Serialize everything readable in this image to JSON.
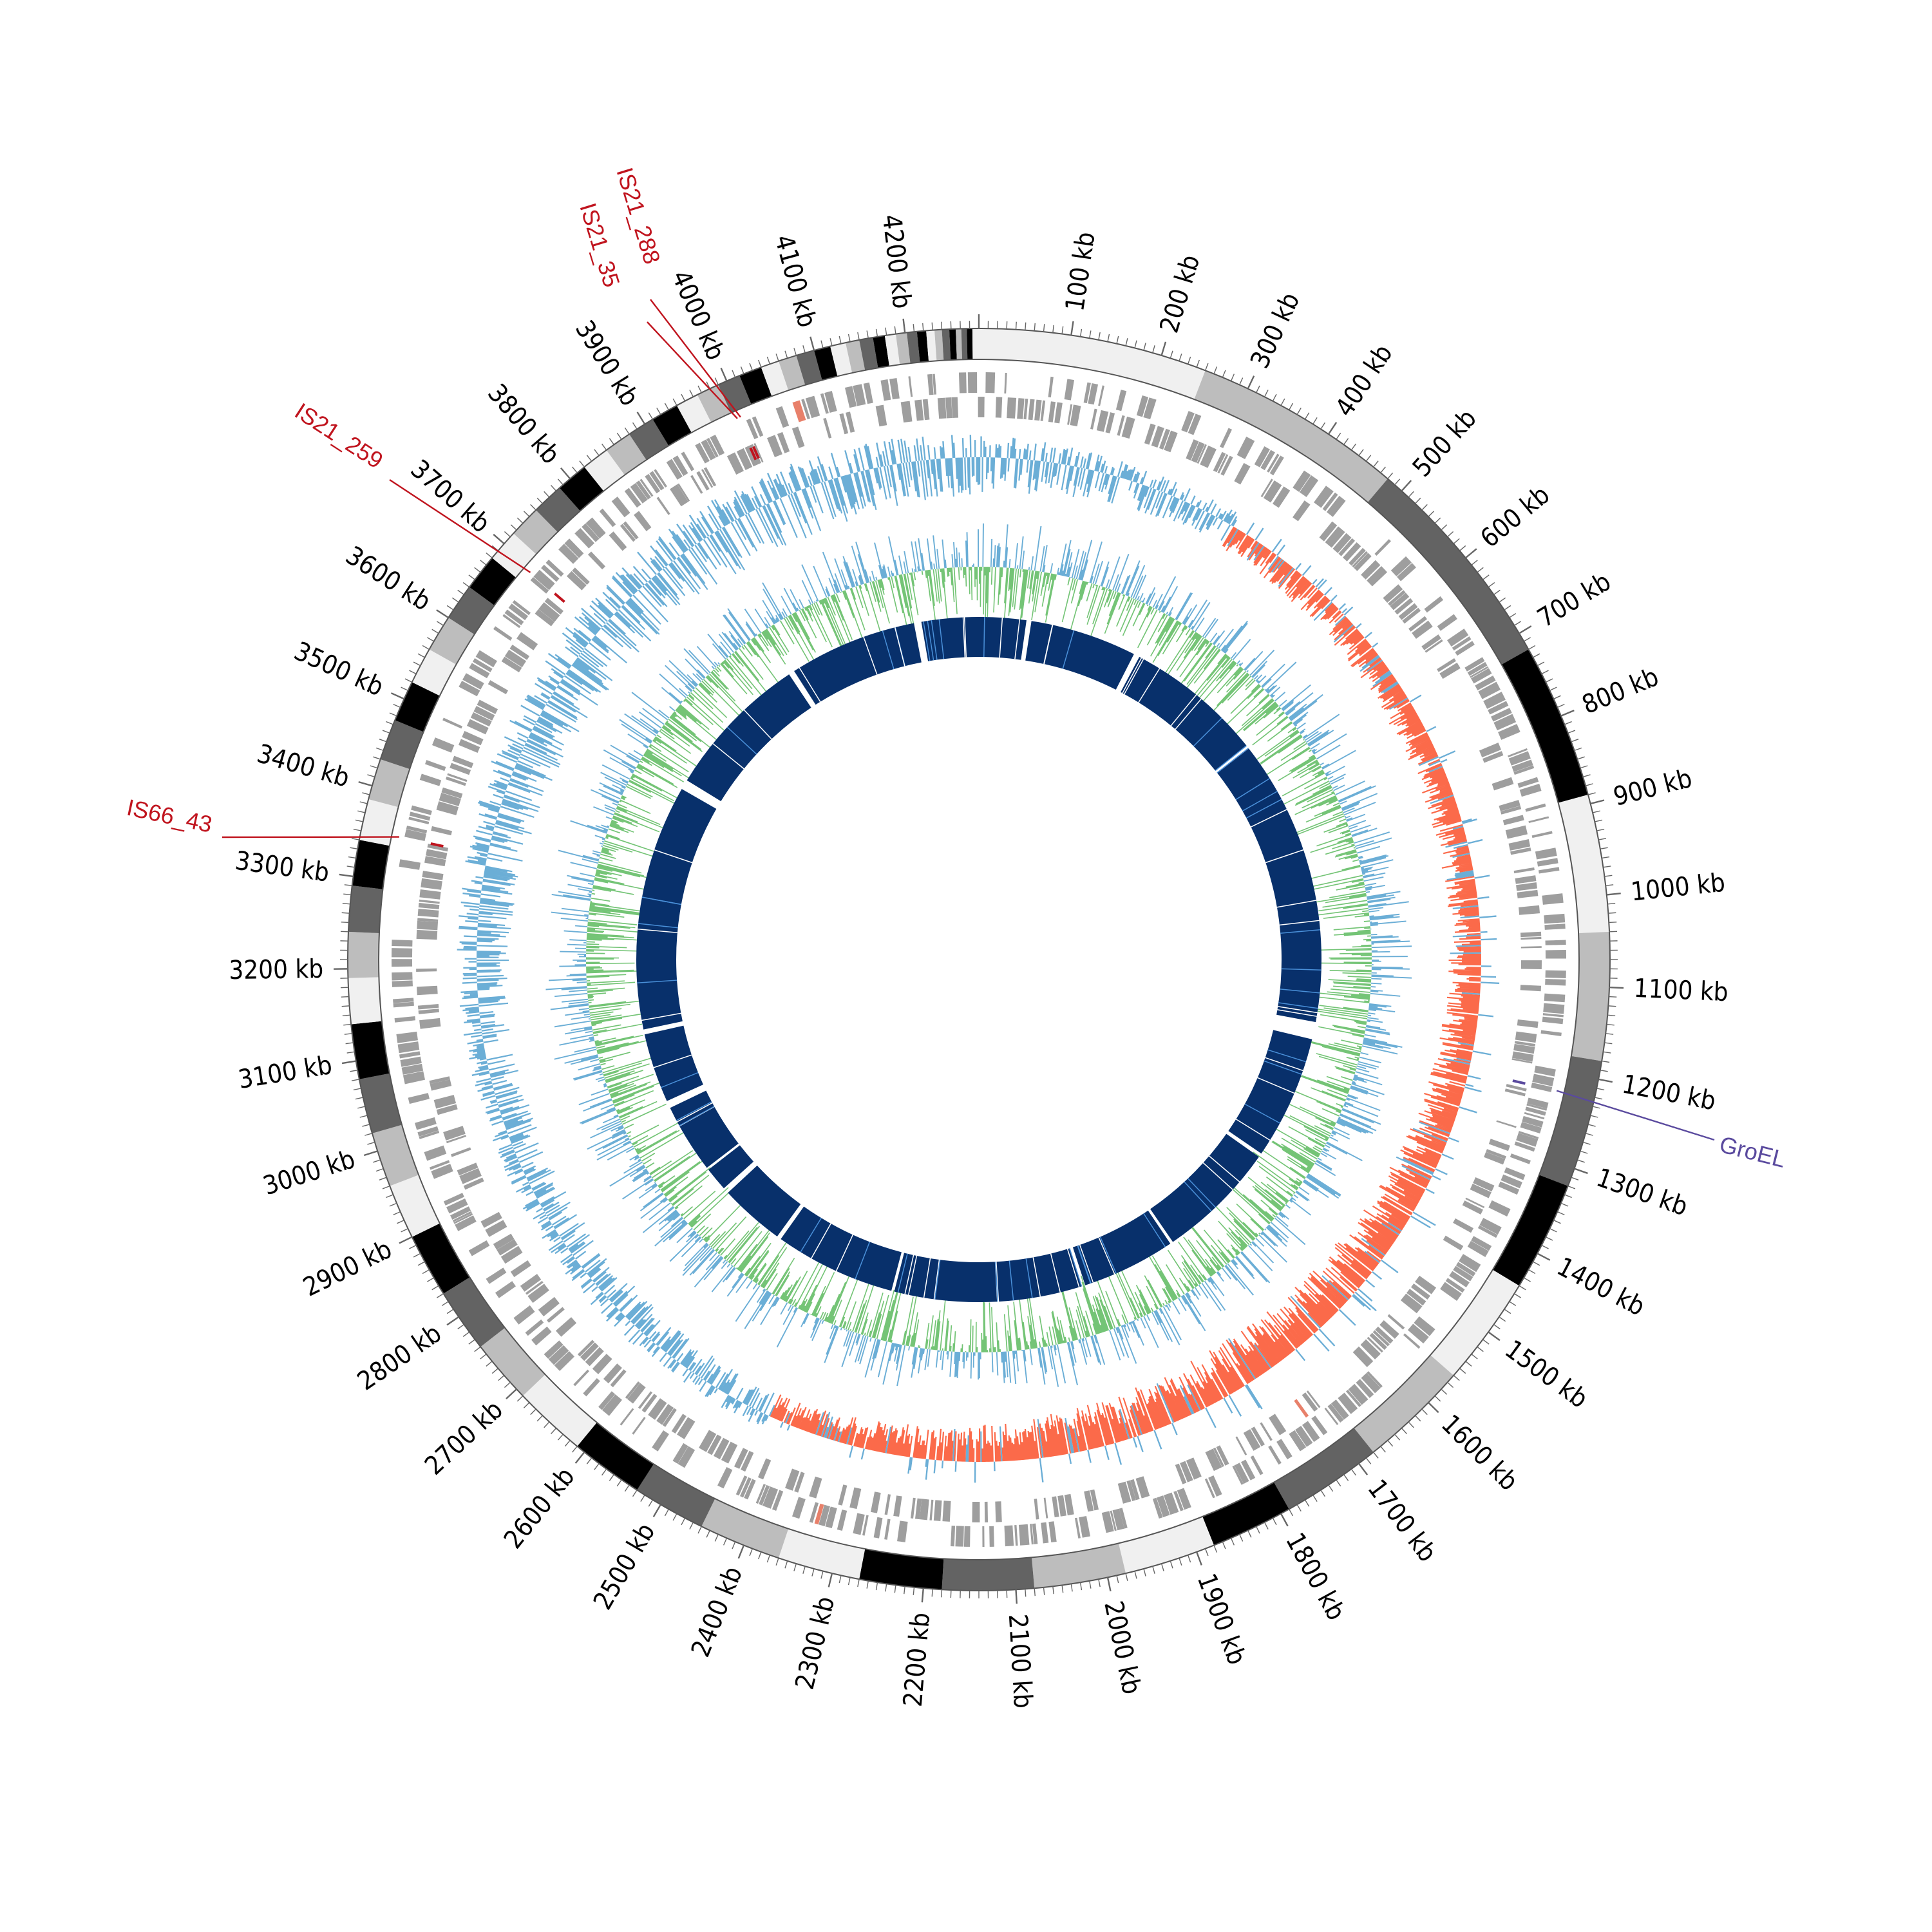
{
  "genome": {
    "length_kb": 4280,
    "tick_unit": "kb",
    "major_tick_interval_kb": 100,
    "minor_tick_interval_kb": 10
  },
  "tick_labels": [
    "100 kb",
    "200 kb",
    "300 kb",
    "400 kb",
    "500 kb",
    "600 kb",
    "700 kb",
    "800 kb",
    "900 kb",
    "1000 kb",
    "1100 kb",
    "1200 kb",
    "1300 kb",
    "1400 kb",
    "1500 kb",
    "1600 kb",
    "1700 kb",
    "1800 kb",
    "1900 kb",
    "2000 kb",
    "2100 kb",
    "2200 kb",
    "2300 kb",
    "2400 kb",
    "2500 kb",
    "2600 kb",
    "2700 kb",
    "2800 kb",
    "2900 kb",
    "3000 kb",
    "3100 kb",
    "3200 kb",
    "3300 kb",
    "3400 kb",
    "3500 kb",
    "3600 kb",
    "3700 kb",
    "3800 kb",
    "3900 kb",
    "4000 kb",
    "4100 kb",
    "4200 kb"
  ],
  "contigs": [
    {
      "start": 0,
      "end": 250,
      "shade": "#f0f0f0"
    },
    {
      "start": 250,
      "end": 480,
      "shade": "#bdbdbd"
    },
    {
      "start": 480,
      "end": 720,
      "shade": "#636363"
    },
    {
      "start": 720,
      "end": 890,
      "shade": "#000000"
    },
    {
      "start": 890,
      "end": 1040,
      "shade": "#f0f0f0"
    },
    {
      "start": 1040,
      "end": 1180,
      "shade": "#bdbdbd"
    },
    {
      "start": 1180,
      "end": 1320,
      "shade": "#636363"
    },
    {
      "start": 1320,
      "end": 1440,
      "shade": "#000000"
    },
    {
      "start": 1440,
      "end": 1560,
      "shade": "#f0f0f0"
    },
    {
      "start": 1560,
      "end": 1680,
      "shade": "#bdbdbd"
    },
    {
      "start": 1680,
      "end": 1790,
      "shade": "#636363"
    },
    {
      "start": 1790,
      "end": 1880,
      "shade": "#000000"
    },
    {
      "start": 1880,
      "end": 1980,
      "shade": "#f0f0f0"
    },
    {
      "start": 1980,
      "end": 2080,
      "shade": "#bdbdbd"
    },
    {
      "start": 2080,
      "end": 2180,
      "shade": "#636363"
    },
    {
      "start": 2180,
      "end": 2270,
      "shade": "#000000"
    },
    {
      "start": 2270,
      "end": 2360,
      "shade": "#f0f0f0"
    },
    {
      "start": 2360,
      "end": 2450,
      "shade": "#bdbdbd"
    },
    {
      "start": 2450,
      "end": 2530,
      "shade": "#636363"
    },
    {
      "start": 2530,
      "end": 2610,
      "shade": "#000000"
    },
    {
      "start": 2610,
      "end": 2690,
      "shade": "#f0f0f0"
    },
    {
      "start": 2690,
      "end": 2760,
      "shade": "#bdbdbd"
    },
    {
      "start": 2760,
      "end": 2830,
      "shade": "#636363"
    },
    {
      "start": 2830,
      "end": 2900,
      "shade": "#000000"
    },
    {
      "start": 2900,
      "end": 2960,
      "shade": "#f0f0f0"
    },
    {
      "start": 2960,
      "end": 3020,
      "shade": "#bdbdbd"
    },
    {
      "start": 3020,
      "end": 3080,
      "shade": "#636363"
    },
    {
      "start": 3080,
      "end": 3140,
      "shade": "#000000"
    },
    {
      "start": 3140,
      "end": 3190,
      "shade": "#f0f0f0"
    },
    {
      "start": 3190,
      "end": 3240,
      "shade": "#bdbdbd"
    },
    {
      "start": 3240,
      "end": 3290,
      "shade": "#636363"
    },
    {
      "start": 3290,
      "end": 3340,
      "shade": "#000000"
    },
    {
      "start": 3340,
      "end": 3385,
      "shade": "#f0f0f0"
    },
    {
      "start": 3385,
      "end": 3430,
      "shade": "#bdbdbd"
    },
    {
      "start": 3430,
      "end": 3475,
      "shade": "#636363"
    },
    {
      "start": 3475,
      "end": 3520,
      "shade": "#000000"
    },
    {
      "start": 3520,
      "end": 3560,
      "shade": "#f0f0f0"
    },
    {
      "start": 3560,
      "end": 3600,
      "shade": "#bdbdbd"
    },
    {
      "start": 3600,
      "end": 3640,
      "shade": "#636363"
    },
    {
      "start": 3640,
      "end": 3680,
      "shade": "#000000"
    },
    {
      "start": 3680,
      "end": 3715,
      "shade": "#f0f0f0"
    },
    {
      "start": 3715,
      "end": 3750,
      "shade": "#bdbdbd"
    },
    {
      "start": 3750,
      "end": 3785,
      "shade": "#636363"
    },
    {
      "start": 3785,
      "end": 3820,
      "shade": "#000000"
    },
    {
      "start": 3820,
      "end": 3850,
      "shade": "#f0f0f0"
    },
    {
      "start": 3850,
      "end": 3880,
      "shade": "#bdbdbd"
    },
    {
      "start": 3880,
      "end": 3910,
      "shade": "#636363"
    },
    {
      "start": 3910,
      "end": 3940,
      "shade": "#000000"
    },
    {
      "start": 3940,
      "end": 3965,
      "shade": "#f0f0f0"
    },
    {
      "start": 3965,
      "end": 3990,
      "shade": "#bdbdbd"
    },
    {
      "start": 3990,
      "end": 4015,
      "shade": "#636363"
    },
    {
      "start": 4015,
      "end": 4040,
      "shade": "#000000"
    },
    {
      "start": 4040,
      "end": 4060,
      "shade": "#f0f0f0"
    },
    {
      "start": 4060,
      "end": 4080,
      "shade": "#bdbdbd"
    },
    {
      "start": 4080,
      "end": 4100,
      "shade": "#636363"
    },
    {
      "start": 4100,
      "end": 4118,
      "shade": "#000000"
    },
    {
      "start": 4118,
      "end": 4135,
      "shade": "#f0f0f0"
    },
    {
      "start": 4135,
      "end": 4150,
      "shade": "#bdbdbd"
    },
    {
      "start": 4150,
      "end": 4165,
      "shade": "#636363"
    },
    {
      "start": 4165,
      "end": 4178,
      "shade": "#000000"
    },
    {
      "start": 4178,
      "end": 4190,
      "shade": "#f0f0f0"
    },
    {
      "start": 4190,
      "end": 4202,
      "shade": "#bdbdbd"
    },
    {
      "start": 4202,
      "end": 4213,
      "shade": "#636363"
    },
    {
      "start": 4213,
      "end": 4223,
      "shade": "#000000"
    },
    {
      "start": 4223,
      "end": 4232,
      "shade": "#f0f0f0"
    },
    {
      "start": 4232,
      "end": 4240,
      "shade": "#bdbdbd"
    },
    {
      "start": 4240,
      "end": 4248,
      "shade": "#636363"
    },
    {
      "start": 4248,
      "end": 4255,
      "shade": "#000000"
    },
    {
      "start": 4255,
      "end": 4261,
      "shade": "#bdbdbd"
    },
    {
      "start": 4261,
      "end": 4267,
      "shade": "#636363"
    },
    {
      "start": 4267,
      "end": 4273,
      "shade": "#000000"
    },
    {
      "start": 4273,
      "end": 4280,
      "shade": "#f0f0f0"
    }
  ],
  "features": [
    {
      "label": "GroEL",
      "position_kb": 1222,
      "color": "#5a4a9e"
    },
    {
      "label": "IS21_288",
      "position_kb": 3998,
      "color": "#c0141e"
    },
    {
      "label": "IS21_35",
      "position_kb": 3994,
      "color": "#c0141e"
    },
    {
      "label": "IS21_259",
      "position_kb": 3695,
      "color": "#c0141e"
    },
    {
      "label": "IS66_43",
      "position_kb": 3352,
      "color": "#c0141e"
    }
  ],
  "tracks": {
    "genes": {
      "color": "#9e9e9e",
      "highlight_color": "#e8806a"
    },
    "gc_skew": {
      "positive_color": "#6baed6",
      "negative_color": "#fb6a4a"
    },
    "gc_content": {
      "positive_color": "#74c476",
      "negative_color": "#6baed6"
    },
    "conservation": {
      "color": "#08306b",
      "accent_color": "#4a90d9"
    }
  },
  "conservation_gaps_kb": [
    {
      "start": 95,
      "end": 105
    },
    {
      "start": 320,
      "end": 332
    },
    {
      "start": 610,
      "end": 618
    },
    {
      "start": 1195,
      "end": 1230
    },
    {
      "start": 1480,
      "end": 1488
    },
    {
      "start": 1730,
      "end": 1736
    },
    {
      "start": 1925,
      "end": 1932
    },
    {
      "start": 2100,
      "end": 2104
    },
    {
      "start": 2310,
      "end": 2316
    },
    {
      "start": 2560,
      "end": 2568
    },
    {
      "start": 2700,
      "end": 2712
    },
    {
      "start": 2760,
      "end": 2765
    },
    {
      "start": 2905,
      "end": 2920
    },
    {
      "start": 3060,
      "end": 3070
    },
    {
      "start": 3565,
      "end": 3585
    },
    {
      "start": 3880,
      "end": 3892
    },
    {
      "start": 4150,
      "end": 4165
    }
  ]
}
